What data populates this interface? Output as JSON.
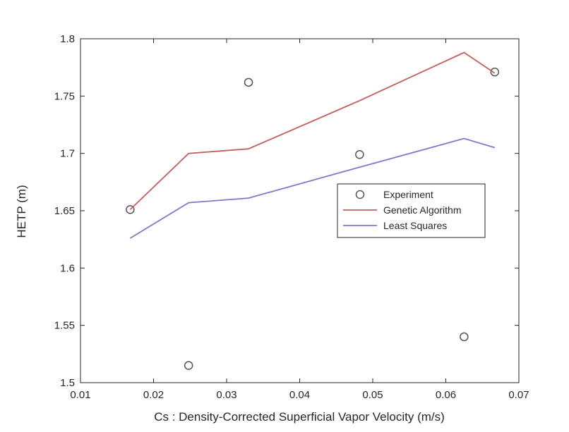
{
  "chart_data": {
    "type": "line",
    "title": "",
    "xlabel": "Cs :  Density-Corrected Superficial Vapor Velocity (m/s)",
    "ylabel": "HETP (m)",
    "xlim": [
      0.01,
      0.07
    ],
    "ylim": [
      1.5,
      1.8
    ],
    "xticks": [
      0.01,
      0.02,
      0.03,
      0.04,
      0.05,
      0.06,
      0.07
    ],
    "xtick_labels": [
      "0.01",
      "0.02",
      "0.03",
      "0.04",
      "0.05",
      "0.06",
      "0.07"
    ],
    "yticks": [
      1.5,
      1.55,
      1.6,
      1.65,
      1.7,
      1.75,
      1.8
    ],
    "ytick_labels": [
      "1.5",
      "1.55",
      "1.6",
      "1.65",
      "1.7",
      "1.75",
      "1.8"
    ],
    "grid": false,
    "legend_position": "center-right",
    "series": [
      {
        "name": "Experiment",
        "style": "markers",
        "marker": "circle",
        "color": "#555555",
        "x": [
          0.0168,
          0.0248,
          0.033,
          0.0482,
          0.0625,
          0.0667
        ],
        "y": [
          1.651,
          1.515,
          1.762,
          1.699,
          1.54,
          1.771
        ]
      },
      {
        "name": "Genetic Algorithm",
        "style": "line",
        "color": "#c0605e",
        "x": [
          0.0168,
          0.0248,
          0.033,
          0.0482,
          0.0625,
          0.0667
        ],
        "y": [
          1.651,
          1.7,
          1.704,
          1.746,
          1.788,
          1.77
        ]
      },
      {
        "name": "Least Squares",
        "style": "line",
        "color": "#7b7bcc",
        "x": [
          0.0168,
          0.0248,
          0.033,
          0.0482,
          0.0625,
          0.0667
        ],
        "y": [
          1.626,
          1.657,
          1.661,
          1.688,
          1.713,
          1.705
        ]
      }
    ]
  }
}
